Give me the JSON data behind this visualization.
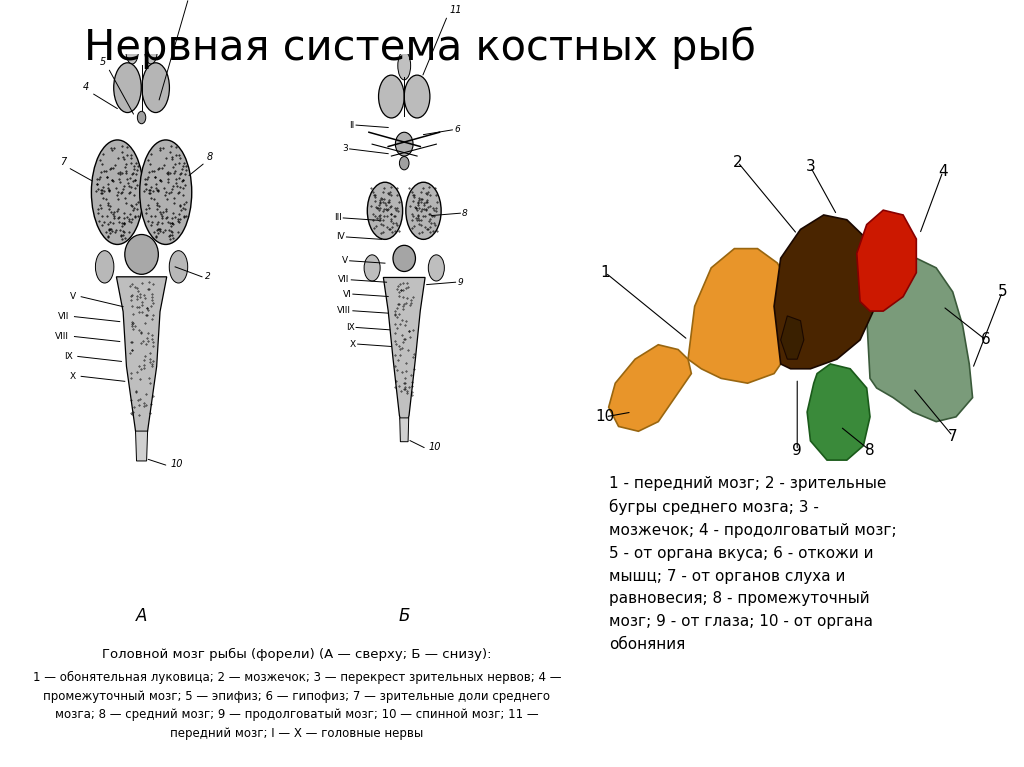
{
  "title": "Нервная система костных рыб",
  "title_fontsize": 30,
  "bg_color": "#ffffff",
  "caption_title": "Головной мозг рыбы (форели) (А — сверху; Б — снизу):",
  "caption_detail": "1 — обонятельная луковица; 2 — мозжечок; 3 — перекрест зрительных нервов; 4 —\nпромежуточный мозг; 5 — эпифиз; 6 — гипофиз; 7 — зрительные доли среднего\nмозга; 8 — средний мозг; 9 — продолговатый мозг; 10 — спинной мозг; 11 —\nпередний мозг; I — X — головные нервы",
  "legend_text": "1 - передний мозг; 2 - зрительные\nбугры среднего мозга; 3 -\nмозжечок; 4 - продолговатый мозг;\n5 - от органа вкуса; 6 - откожи и\nмышц; 7 - от органов слуха и\nравновесия; 8 - промежуточный\nмозг; 9 - от глаза; 10 - от органа\nобоняния",
  "forebrain_color": "#E8952A",
  "optic_tectum_color": "#4A2500",
  "cerebellum_color": "#CC1800",
  "medulla_color": "#7A9B7A",
  "green_lobe_color": "#3A8A3A",
  "dark_conn_color": "#3A2000"
}
